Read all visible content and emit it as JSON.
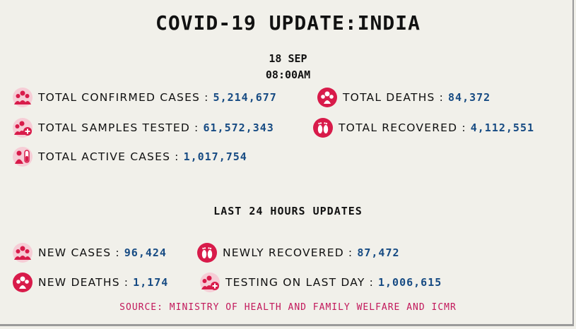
{
  "title": "COVID-19 UPDATE:INDIA",
  "date": "18 SEP",
  "time": "08:00AM",
  "colors": {
    "accent": "#d81b4a",
    "value": "#174b83",
    "source": "#c2185b",
    "background": "#f1f0ea"
  },
  "stats": {
    "confirmed": {
      "label": "TOTAL CONFIRMED CASES",
      "sep": ":",
      "value": "5,214,677",
      "icon": "people-icon"
    },
    "deaths": {
      "label": "TOTAL DEATHS",
      "sep": ":",
      "value": "84,372",
      "icon": "deaths-icon"
    },
    "samples": {
      "label": "TOTAL SAMPLES TESTED",
      "sep": ":",
      "value": "61,572,343",
      "icon": "people-plus-icon"
    },
    "recovered": {
      "label": "TOTAL RECOVERED",
      "sep": ":",
      "value": "4,112,551",
      "icon": "footprints-icon"
    },
    "active": {
      "label": "TOTAL ACTIVE CASES",
      "sep": ":",
      "value": "1,017,754",
      "icon": "person-test-tube-icon"
    }
  },
  "last24_heading": "LAST 24 HOURS UPDATES",
  "last24": {
    "new_cases": {
      "label": "NEW CASES",
      "sep": ":",
      "value": "96,424",
      "icon": "people-icon"
    },
    "newly_recovered": {
      "label": "NEWLY RECOVERED",
      "sep": ":",
      "value": "87,472",
      "icon": "footprints-icon"
    },
    "new_deaths": {
      "label": "NEW DEATHS",
      "sep": ":",
      "value": "1,174",
      "icon": "deaths-icon"
    },
    "testing": {
      "label": "TESTING ON LAST DAY",
      "sep": ":",
      "value": "1,006,615",
      "icon": "people-plus-icon"
    }
  },
  "source": "SOURCE: MINISTRY OF HEALTH AND FAMILY WELFARE AND ICMR"
}
